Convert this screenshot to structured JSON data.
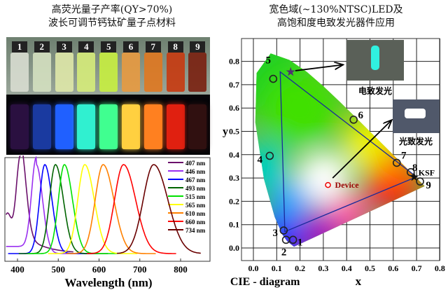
{
  "left_title": {
    "line1": "高荧光量子产率(QY>70%)",
    "line2": "波长可调节钙钛矿量子点材料"
  },
  "right_title": {
    "line1": "宽色域(~130%NTSC)LED及",
    "line2": "高饱和度电致发光器件应用"
  },
  "vials": {
    "labels": [
      "1",
      "2",
      "3",
      "4",
      "5",
      "6",
      "7",
      "8",
      "9"
    ],
    "daylight_colors": [
      "#d8ddd0",
      "#d4e0c0",
      "#dfe8a8",
      "#d6ec7a",
      "#c8f040",
      "#e89a40",
      "#e07820",
      "#c83a10",
      "#7a2010"
    ],
    "emission_colors": [
      "#2a1040",
      "#1a3aa0",
      "#2060ff",
      "#30f0d0",
      "#40ff90",
      "#ffd040",
      "#ff8020",
      "#e02010",
      "#301010"
    ]
  },
  "chart_data": [
    {
      "type": "line",
      "xlabel": "Wavelength (nm)",
      "ylabel": "",
      "x_ticks": [
        400,
        500,
        600,
        700,
        800
      ],
      "xlim": [
        370,
        870
      ],
      "grid": false,
      "legend_position": "top-right",
      "series": [
        {
          "name": "407 nm",
          "peak": 407,
          "color": "#6b106b"
        },
        {
          "name": "446 nm",
          "peak": 446,
          "color": "#9a30f0"
        },
        {
          "name": "467 nm",
          "peak": 467,
          "color": "#0000ff"
        },
        {
          "name": "493 nm",
          "peak": 493,
          "color": "#006400"
        },
        {
          "name": "515 nm",
          "peak": 515,
          "color": "#00e000"
        },
        {
          "name": "565 nm",
          "peak": 565,
          "color": "#ffff00"
        },
        {
          "name": "610 nm",
          "peak": 610,
          "color": "#ff8000"
        },
        {
          "name": "660 nm",
          "peak": 660,
          "color": "#ff0000"
        },
        {
          "name": "734 nm",
          "peak": 734,
          "color": "#6a0000"
        }
      ]
    },
    {
      "type": "scatter",
      "xlabel": "x",
      "ylabel": "y",
      "caption": "CIE - diagram",
      "x_ticks": [
        "0.0",
        "0.1",
        "0.2",
        "0.3",
        "0.4",
        "0.5",
        "0.6",
        "0.7",
        "0.8"
      ],
      "y_ticks": [
        "0.0",
        "0.1",
        "0.2",
        "0.3",
        "0.4",
        "0.5",
        "0.6",
        "0.7",
        "0.8"
      ],
      "xlim": [
        -0.05,
        0.8
      ],
      "ylim": [
        -0.055,
        0.9
      ],
      "grid": true,
      "points": [
        {
          "label": "1",
          "x": 0.17,
          "y": 0.035
        },
        {
          "label": "2",
          "x": 0.14,
          "y": 0.035
        },
        {
          "label": "3",
          "x": 0.13,
          "y": 0.075
        },
        {
          "label": "4",
          "x": 0.07,
          "y": 0.395
        },
        {
          "label": "5",
          "x": 0.085,
          "y": 0.725
        },
        {
          "label": "6",
          "x": 0.43,
          "y": 0.55
        },
        {
          "label": "7",
          "x": 0.615,
          "y": 0.365
        },
        {
          "label": "8",
          "x": 0.675,
          "y": 0.325
        },
        {
          "label": "9",
          "x": 0.715,
          "y": 0.285
        }
      ],
      "device": {
        "label": "Device",
        "x": 0.32,
        "y": 0.27
      },
      "ksf": {
        "label": "KSF",
        "x": 0.69,
        "y": 0.305
      },
      "el_star": {
        "x": 0.16,
        "y": 0.755
      },
      "gamut_triangle": [
        [
          0.115,
          0.755
        ],
        [
          0.135,
          0.07
        ],
        [
          0.7,
          0.305
        ]
      ],
      "insets": {
        "el_label": "电致发光",
        "pl_label": "光致发光"
      }
    }
  ]
}
